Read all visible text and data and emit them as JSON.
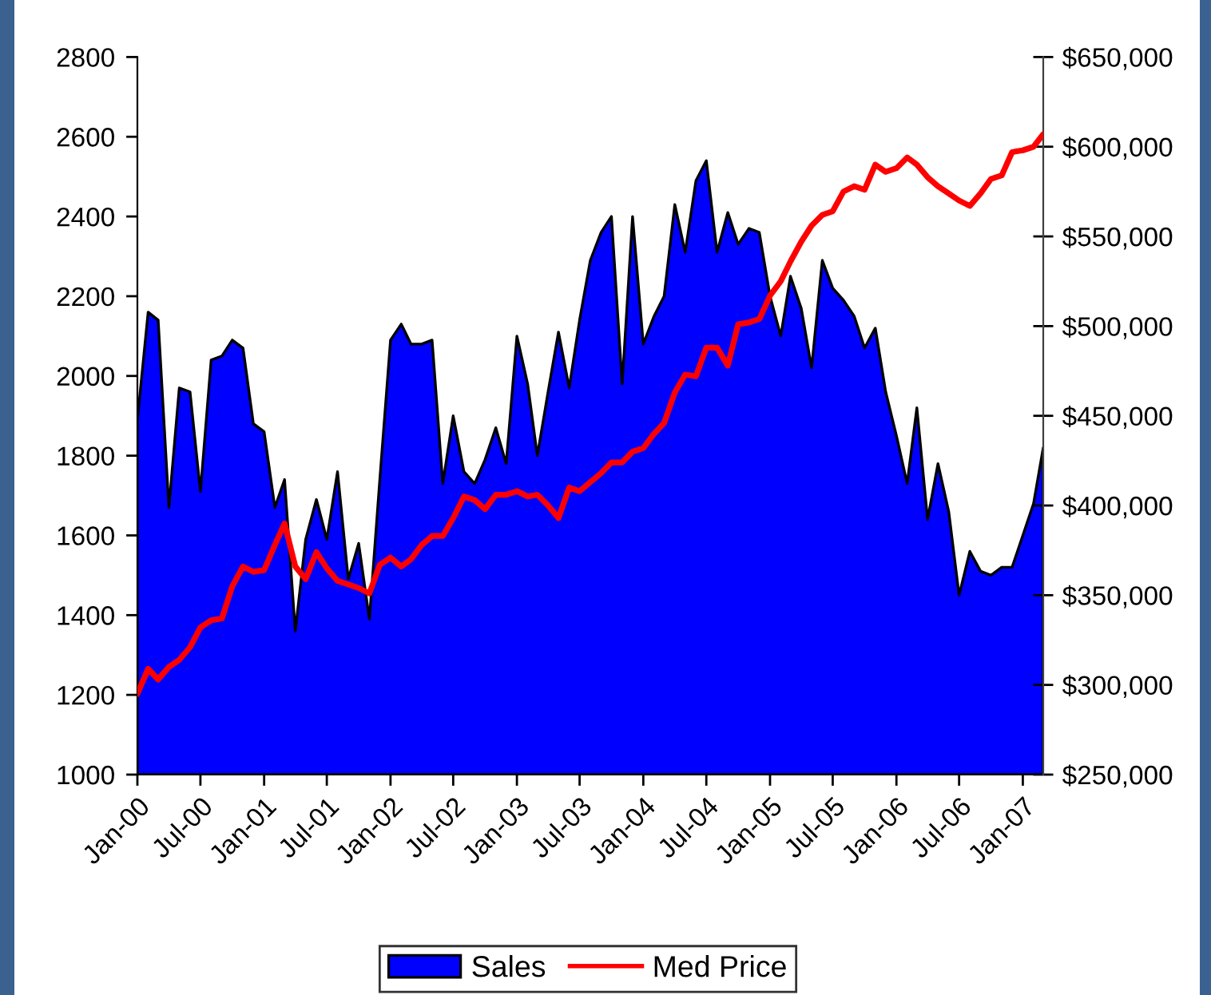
{
  "chart_data": {
    "type": "area",
    "x": [
      "2000-01",
      "2000-02",
      "2000-03",
      "2000-04",
      "2000-05",
      "2000-06",
      "2000-07",
      "2000-08",
      "2000-09",
      "2000-10",
      "2000-11",
      "2000-12",
      "2001-01",
      "2001-02",
      "2001-03",
      "2001-04",
      "2001-05",
      "2001-06",
      "2001-07",
      "2001-08",
      "2001-09",
      "2001-10",
      "2001-11",
      "2001-12",
      "2002-01",
      "2002-02",
      "2002-03",
      "2002-04",
      "2002-05",
      "2002-06",
      "2002-07",
      "2002-08",
      "2002-09",
      "2002-10",
      "2002-11",
      "2002-12",
      "2003-01",
      "2003-02",
      "2003-03",
      "2003-04",
      "2003-05",
      "2003-06",
      "2003-07",
      "2003-08",
      "2003-09",
      "2003-10",
      "2003-11",
      "2003-12",
      "2004-01",
      "2004-02",
      "2004-03",
      "2004-04",
      "2004-05",
      "2004-06",
      "2004-07",
      "2004-08",
      "2004-09",
      "2004-10",
      "2004-11",
      "2004-12",
      "2005-01",
      "2005-02",
      "2005-03",
      "2005-04",
      "2005-05",
      "2005-06",
      "2005-07",
      "2005-08",
      "2005-09",
      "2005-10",
      "2005-11",
      "2005-12",
      "2006-01",
      "2006-02",
      "2006-03",
      "2006-04",
      "2006-05",
      "2006-06",
      "2006-07",
      "2006-08",
      "2006-09",
      "2006-10",
      "2006-11",
      "2006-12",
      "2007-01",
      "2007-02",
      "2007-03"
    ],
    "xlim": [
      "2000-01",
      "2007-03"
    ],
    "xticks": [
      {
        "value": "2000-01",
        "label": "Jan-00"
      },
      {
        "value": "2000-07",
        "label": "Jul-00"
      },
      {
        "value": "2001-01",
        "label": "Jan-01"
      },
      {
        "value": "2001-07",
        "label": "Jul-01"
      },
      {
        "value": "2002-01",
        "label": "Jan-02"
      },
      {
        "value": "2002-07",
        "label": "Jul-02"
      },
      {
        "value": "2003-01",
        "label": "Jan-03"
      },
      {
        "value": "2003-07",
        "label": "Jul-03"
      },
      {
        "value": "2004-01",
        "label": "Jan-04"
      },
      {
        "value": "2004-07",
        "label": "Jul-04"
      },
      {
        "value": "2005-01",
        "label": "Jan-05"
      },
      {
        "value": "2005-07",
        "label": "Jul-05"
      },
      {
        "value": "2006-01",
        "label": "Jan-06"
      },
      {
        "value": "2006-07",
        "label": "Jul-06"
      },
      {
        "value": "2007-01",
        "label": "Jan-07"
      }
    ],
    "ylim": [
      1000,
      2800
    ],
    "yticks": [
      1000,
      1200,
      1400,
      1600,
      1800,
      2000,
      2200,
      2400,
      2600,
      2800
    ],
    "y2lim": [
      250000,
      650000
    ],
    "y2ticks": [
      {
        "value": 250000,
        "label": "$250,000"
      },
      {
        "value": 300000,
        "label": "$300,000"
      },
      {
        "value": 350000,
        "label": "$350,000"
      },
      {
        "value": 400000,
        "label": "$400,000"
      },
      {
        "value": 450000,
        "label": "$450,000"
      },
      {
        "value": 500000,
        "label": "$500,000"
      },
      {
        "value": 550000,
        "label": "$550,000"
      },
      {
        "value": 600000,
        "label": "$600,000"
      },
      {
        "value": 650000,
        "label": "$650,000"
      }
    ],
    "legend": "bottom",
    "series": [
      {
        "name": "Sales",
        "color": "#0000ff",
        "values": [
          1890,
          2160,
          2140,
          1670,
          1970,
          1960,
          1710,
          2040,
          2050,
          2090,
          2070,
          1880,
          1860,
          1670,
          1740,
          1360,
          1590,
          1690,
          1590,
          1760,
          1490,
          1580,
          1390,
          1740,
          2090,
          2130,
          2080,
          2080,
          2090,
          1730,
          1900,
          1760,
          1730,
          1790,
          1870,
          1780,
          2100,
          1980,
          1800,
          1960,
          2110,
          1970,
          2140,
          2290,
          2360,
          2400,
          1980,
          2400,
          2080,
          2150,
          2200,
          2430,
          2310,
          2490,
          2540,
          2310,
          2410,
          2330,
          2370,
          2360,
          2200,
          2100,
          2250,
          2170,
          2020,
          2290,
          2220,
          2190,
          2150,
          2070,
          2120,
          1960,
          1850,
          1730,
          1920,
          1640,
          1780,
          1660,
          1450,
          1560,
          1510,
          1500,
          1520,
          1520,
          1600,
          1680,
          1820
        ]
      },
      {
        "name": "Med Price",
        "type": "line",
        "axis": "y2",
        "color": "#ff0000",
        "values": [
          295000,
          309000,
          303000,
          310000,
          314000,
          321000,
          332000,
          336000,
          337000,
          355000,
          366000,
          363000,
          364000,
          378000,
          390000,
          366000,
          359000,
          374000,
          365000,
          358000,
          356000,
          354000,
          351000,
          367000,
          371000,
          366000,
          370000,
          378000,
          383000,
          383000,
          393000,
          405000,
          403000,
          398000,
          406000,
          406000,
          408000,
          405000,
          406000,
          400000,
          393000,
          410000,
          408000,
          413000,
          418000,
          424000,
          424000,
          430000,
          432000,
          440000,
          446000,
          463000,
          473000,
          472000,
          488000,
          488000,
          478000,
          501000,
          502000,
          504000,
          517000,
          525000,
          536000,
          547000,
          556000,
          562000,
          564000,
          575000,
          578000,
          576000,
          590000,
          586000,
          588000,
          594000,
          590000,
          583000,
          578000,
          574000,
          570000,
          567000,
          574000,
          582000,
          584000,
          597000,
          598000,
          600000,
          607000
        ]
      }
    ]
  }
}
